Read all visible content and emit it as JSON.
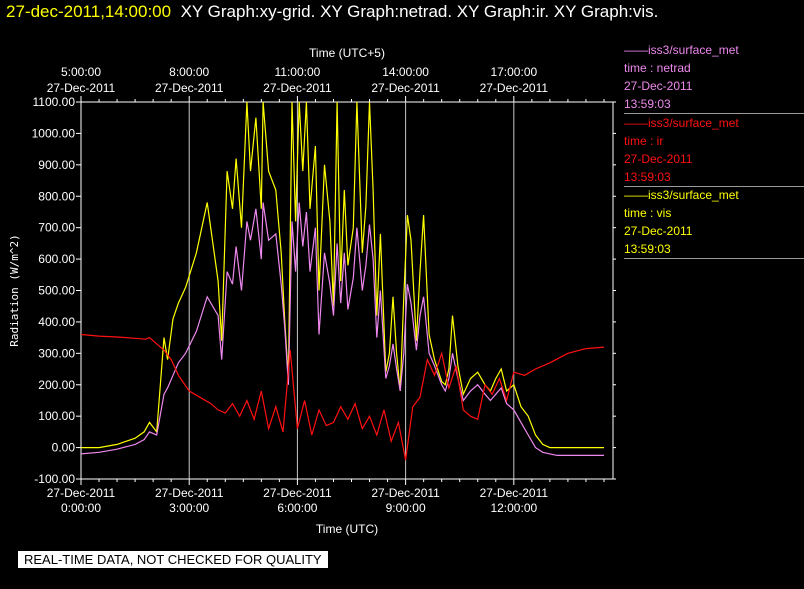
{
  "header": {
    "timestamp": "27-dec-2011,14:00:00",
    "graphs": "XY Graph:xy-grid.  XY Graph:netrad.  XY Graph:ir.  XY Graph:vis."
  },
  "legend": [
    {
      "name": "iss3/surface_met",
      "var": "time : netrad",
      "date": "27-Dec-2011",
      "time": "13:59:03",
      "color": "#ee88ee"
    },
    {
      "name": "iss3/surface_met",
      "var": "time : ir",
      "date": "27-Dec-2011",
      "time": "13:59:03",
      "color": "#ff1111"
    },
    {
      "name": "iss3/surface_met",
      "var": "time : vis",
      "date": "27-Dec-2011",
      "time": "13:59:03",
      "color": "#ffff00"
    }
  ],
  "disclaimer": "REAL-TIME DATA, NOT CHECKED FOR QUALITY",
  "chart_data": {
    "type": "line",
    "ylabel": "Radiation (W/m^2)",
    "xlabel_bottom": "Time (UTC)",
    "xlabel_top": "Time (UTC+5)",
    "xlim": [
      0,
      14.75
    ],
    "ylim": [
      -100,
      1100
    ],
    "grid": "vertical",
    "legend_position": "right",
    "yticks": [
      -100,
      0,
      100,
      200,
      300,
      400,
      500,
      600,
      700,
      800,
      900,
      1000,
      1100
    ],
    "ytick_labels": [
      "-100.00",
      "0.00",
      "100.00",
      "200.00",
      "300.00",
      "400.00",
      "500.00",
      "600.00",
      "700.00",
      "800.00",
      "900.00",
      "1000.00",
      "1100.00"
    ],
    "xticks_bottom": [
      {
        "x": 0,
        "date": "27-Dec-2011",
        "time": "0:00:00"
      },
      {
        "x": 3,
        "date": "27-Dec-2011",
        "time": "3:00:00"
      },
      {
        "x": 6,
        "date": "27-Dec-2011",
        "time": "6:00:00"
      },
      {
        "x": 9,
        "date": "27-Dec-2011",
        "time": "9:00:00"
      },
      {
        "x": 12,
        "date": "27-Dec-2011",
        "time": "12:00:00"
      }
    ],
    "xticks_top": [
      {
        "x": 0,
        "time": "5:00:00",
        "date": "27-Dec-2011"
      },
      {
        "x": 3,
        "time": "8:00:00",
        "date": "27-Dec-2011"
      },
      {
        "x": 6,
        "time": "11:00:00",
        "date": "27-Dec-2011"
      },
      {
        "x": 9,
        "time": "14:00:00",
        "date": "27-Dec-2011"
      },
      {
        "x": 12,
        "time": "17:00:00",
        "date": "27-Dec-2011"
      }
    ],
    "series": [
      {
        "name": "time : vis",
        "color": "#ffff00",
        "x": [
          0,
          0.5,
          1,
          1.5,
          1.75,
          1.9,
          2.1,
          2.3,
          2.4,
          2.55,
          2.7,
          2.9,
          3.2,
          3.5,
          3.8,
          3.9,
          4.05,
          4.2,
          4.3,
          4.45,
          4.6,
          4.7,
          4.85,
          5.0,
          5.05,
          5.2,
          5.4,
          5.55,
          5.65,
          5.75,
          5.85,
          5.95,
          6.05,
          6.15,
          6.25,
          6.35,
          6.5,
          6.6,
          6.75,
          6.9,
          7.0,
          7.1,
          7.2,
          7.3,
          7.4,
          7.55,
          7.65,
          7.8,
          7.9,
          8.0,
          8.1,
          8.2,
          8.3,
          8.45,
          8.55,
          8.65,
          8.75,
          8.85,
          8.95,
          9.05,
          9.15,
          9.3,
          9.4,
          9.5,
          9.65,
          9.8,
          10.0,
          10.1,
          10.2,
          10.3,
          10.45,
          10.6,
          10.8,
          11.0,
          11.2,
          11.35,
          11.5,
          11.65,
          11.8,
          12.0,
          12.2,
          12.4,
          12.6,
          12.8,
          13.0,
          13.2,
          13.5,
          14.0,
          14.5
        ],
        "y": [
          0,
          0,
          10,
          30,
          50,
          80,
          50,
          350,
          280,
          410,
          460,
          510,
          620,
          780,
          530,
          340,
          880,
          760,
          920,
          700,
          1100,
          880,
          1050,
          760,
          1100,
          880,
          820,
          620,
          400,
          220,
          1100,
          720,
          1100,
          880,
          1100,
          760,
          960,
          500,
          900,
          720,
          450,
          1100,
          530,
          820,
          580,
          700,
          1100,
          620,
          770,
          1100,
          820,
          420,
          680,
          240,
          300,
          480,
          300,
          180,
          480,
          740,
          660,
          340,
          560,
          740,
          360,
          280,
          210,
          200,
          250,
          420,
          260,
          170,
          220,
          240,
          200,
          180,
          220,
          250,
          180,
          200,
          130,
          100,
          40,
          10,
          0,
          0,
          0,
          0,
          0
        ]
      },
      {
        "name": "time : netrad",
        "color": "#ee88ee",
        "x": [
          0,
          0.5,
          1,
          1.5,
          1.75,
          1.9,
          2.1,
          2.3,
          2.4,
          2.55,
          2.7,
          2.9,
          3.2,
          3.5,
          3.8,
          3.9,
          4.05,
          4.2,
          4.3,
          4.45,
          4.6,
          4.7,
          4.85,
          5.0,
          5.05,
          5.2,
          5.4,
          5.55,
          5.65,
          5.75,
          5.85,
          5.95,
          6.05,
          6.15,
          6.25,
          6.35,
          6.5,
          6.6,
          6.75,
          6.9,
          7.0,
          7.1,
          7.2,
          7.3,
          7.4,
          7.55,
          7.65,
          7.8,
          7.9,
          8.0,
          8.1,
          8.2,
          8.3,
          8.45,
          8.55,
          8.65,
          8.75,
          8.85,
          8.95,
          9.05,
          9.15,
          9.3,
          9.4,
          9.5,
          9.65,
          9.8,
          10.0,
          10.1,
          10.2,
          10.3,
          10.45,
          10.6,
          10.8,
          11.0,
          11.2,
          11.35,
          11.5,
          11.65,
          11.8,
          12.0,
          12.2,
          12.4,
          12.6,
          12.8,
          13.0,
          13.2,
          13.5,
          14.0,
          14.5
        ],
        "y": [
          -20,
          -15,
          -5,
          10,
          25,
          50,
          40,
          170,
          190,
          230,
          270,
          300,
          370,
          480,
          420,
          280,
          560,
          520,
          640,
          500,
          720,
          660,
          760,
          600,
          780,
          660,
          680,
          520,
          380,
          200,
          720,
          560,
          780,
          640,
          750,
          560,
          700,
          360,
          620,
          520,
          420,
          650,
          460,
          620,
          440,
          540,
          700,
          500,
          580,
          710,
          600,
          350,
          500,
          220,
          260,
          330,
          250,
          180,
          300,
          520,
          460,
          310,
          420,
          480,
          300,
          260,
          200,
          180,
          220,
          300,
          220,
          150,
          180,
          200,
          170,
          150,
          170,
          190,
          140,
          120,
          80,
          40,
          0,
          -15,
          -20,
          -25,
          -25,
          -25,
          -25
        ]
      },
      {
        "name": "time : ir",
        "color": "#ff1111",
        "x": [
          0,
          0.5,
          1,
          1.5,
          1.8,
          1.9,
          2.1,
          2.3,
          2.5,
          2.7,
          3.0,
          3.3,
          3.6,
          3.8,
          4.0,
          4.2,
          4.4,
          4.6,
          4.8,
          5.0,
          5.2,
          5.4,
          5.6,
          5.8,
          6.0,
          6.2,
          6.4,
          6.6,
          6.8,
          7.0,
          7.2,
          7.4,
          7.6,
          7.8,
          8.0,
          8.2,
          8.4,
          8.6,
          8.8,
          9.0,
          9.2,
          9.4,
          9.6,
          9.8,
          10.0,
          10.2,
          10.4,
          10.6,
          10.8,
          11.0,
          11.2,
          11.4,
          11.6,
          11.8,
          12.0,
          12.3,
          12.6,
          13.0,
          13.5,
          14.0,
          14.5
        ],
        "y": [
          360,
          355,
          352,
          348,
          345,
          350,
          330,
          310,
          280,
          230,
          180,
          160,
          140,
          120,
          110,
          140,
          100,
          150,
          90,
          180,
          60,
          130,
          50,
          310,
          60,
          150,
          40,
          120,
          70,
          80,
          130,
          90,
          140,
          60,
          100,
          40,
          120,
          20,
          80,
          -40,
          130,
          160,
          280,
          230,
          300,
          190,
          260,
          120,
          100,
          90,
          200,
          170,
          220,
          150,
          240,
          230,
          250,
          270,
          300,
          315,
          320
        ]
      }
    ]
  }
}
